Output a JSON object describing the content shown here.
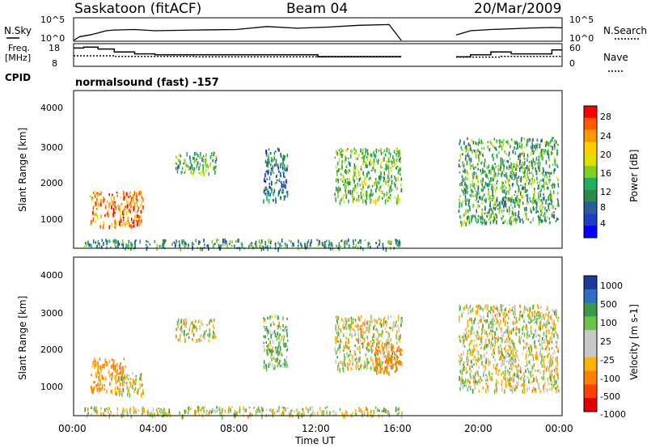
{
  "header": {
    "station": "Saskatoon (fitACF)",
    "beam": "Beam 04",
    "date": "20/Mar/2009"
  },
  "panels": {
    "nsky_label": "N.Sky",
    "nsky_tick_top": "10^5",
    "nsky_tick_bottom": "10^0",
    "nsearch_label": "N.Search",
    "freq_label_1": "Freq.",
    "freq_label_2": "[MHz]",
    "freq_ticks": [
      "18",
      "8"
    ],
    "nave_ticks": [
      "60",
      "0"
    ],
    "nave_label": "Nave",
    "cpid_label": "CPID",
    "cpid_text": "normalsound (fast) -157"
  },
  "axes": {
    "slant_range_label": "Slant Range [km]",
    "slant_range_ticks": [
      "4000",
      "3000",
      "2000",
      "1000"
    ],
    "time_ticks": [
      "00:00",
      "04:00",
      "08:00",
      "12:00",
      "16:00",
      "20:00",
      "00:00"
    ],
    "time_label": "Time UT"
  },
  "colorbars": {
    "power_label": "Power [dB]",
    "power_ticks": [
      "28",
      "24",
      "20",
      "16",
      "12",
      "8",
      "4"
    ],
    "power_colors": [
      "#ff0000",
      "#ff5a00",
      "#ff9a00",
      "#ffce00",
      "#e0e000",
      "#7fd020",
      "#20b060",
      "#2a8a4a",
      "#2c5a9a",
      "#1e3cc8",
      "#0000ff"
    ],
    "velocity_label": "Velocity [m s-1]",
    "velocity_ticks": [
      "1000",
      "500",
      "100",
      "25",
      "-25",
      "-100",
      "-500",
      "-1000"
    ],
    "velocity_colors": [
      "#1a3a9a",
      "#2d6fc0",
      "#3a9a4a",
      "#6cc34a",
      "#c8c8c8",
      "#c8c8c8",
      "#ffb000",
      "#ff8000",
      "#ff4000",
      "#e00000"
    ]
  },
  "chart_data": [
    {
      "type": "line",
      "title": "N.Sky / N.Search",
      "xlabel": "Time UT",
      "xlim": [
        0,
        24
      ],
      "yscale": "log",
      "ylim": [
        1,
        100000
      ],
      "series": [
        {
          "name": "N.Sky",
          "x": [
            0.0,
            0.3,
            0.8,
            1.2,
            1.6,
            2.0,
            3.0,
            4.0,
            6.0,
            8.0,
            9.5,
            11.0,
            12.5,
            14.0,
            15.5,
            16.1,
            18.8,
            19.5,
            20.5,
            21.5,
            22.5,
            23.5,
            24.0
          ],
          "y": [
            1,
            8,
            20,
            60,
            200,
            300,
            400,
            200,
            300,
            400,
            2000,
            800,
            1500,
            4000,
            6000,
            1,
            20,
            200,
            400,
            600,
            900,
            1200,
            1000
          ]
        }
      ]
    },
    {
      "type": "line",
      "title": "Freq. / Nave",
      "xlabel": "Time UT",
      "xlim": [
        0,
        24
      ],
      "series": [
        {
          "name": "Freq.",
          "x": [
            0.0,
            0.5,
            1.2,
            2.0,
            3.0,
            4.0,
            6.0,
            8.0,
            12.0,
            16.1,
            18.8,
            19.5,
            20.5,
            21.5,
            22.5,
            23.5,
            24.0
          ],
          "y": [
            17,
            17.5,
            16.5,
            15,
            14,
            13.5,
            13.5,
            13.5,
            12.5,
            12.5,
            12.5,
            13.5,
            15,
            14,
            14,
            16,
            16
          ]
        },
        {
          "name": "Nave",
          "x": [
            0.0,
            0.5,
            2.0,
            6.0,
            12.0,
            16.1,
            18.8,
            21.0,
            24.0
          ],
          "y": [
            30,
            30,
            28,
            27,
            28,
            28,
            26,
            28,
            30
          ]
        }
      ]
    },
    {
      "type": "heatmap",
      "title": "Power",
      "xlabel": "Time UT",
      "ylabel": "Slant Range [km]",
      "xlim": [
        0,
        24
      ],
      "ylim": [
        180,
        4600
      ],
      "zlabel": "Power [dB]",
      "zlim": [
        0,
        30
      ],
      "gaps": [
        [
          16.1,
          18.8
        ]
      ],
      "echo_regions": [
        {
          "t": [
            0.8,
            3.4
          ],
          "r": [
            800,
            1800
          ],
          "z": 24
        },
        {
          "t": [
            5.0,
            7.0
          ],
          "r": [
            2300,
            2900
          ],
          "z": 12
        },
        {
          "t": [
            9.3,
            10.5
          ],
          "r": [
            1500,
            3000
          ],
          "z": 8
        },
        {
          "t": [
            12.8,
            16.1
          ],
          "r": [
            1500,
            3000
          ],
          "z": 14
        },
        {
          "t": [
            18.9,
            23.8
          ],
          "r": [
            900,
            3300
          ],
          "z": 12
        },
        {
          "t": [
            0.5,
            16.1
          ],
          "r": [
            200,
            450
          ],
          "z": 10
        }
      ]
    },
    {
      "type": "heatmap",
      "title": "Velocity",
      "xlabel": "Time UT",
      "ylabel": "Slant Range [km]",
      "xlim": [
        0,
        24
      ],
      "ylim": [
        180,
        4600
      ],
      "zlabel": "Velocity [m s-1]",
      "zlim": [
        -1000,
        1000
      ],
      "gaps": [
        [
          16.1,
          18.8
        ]
      ],
      "echo_regions": [
        {
          "t": [
            0.8,
            2.5
          ],
          "r": [
            900,
            1800
          ],
          "v": -150
        },
        {
          "t": [
            2.0,
            3.4
          ],
          "r": [
            800,
            1400
          ],
          "v": 0
        },
        {
          "t": [
            5.0,
            7.0
          ],
          "r": [
            2300,
            2900
          ],
          "v": 0
        },
        {
          "t": [
            9.3,
            10.5
          ],
          "r": [
            1500,
            3000
          ],
          "v": 80
        },
        {
          "t": [
            12.8,
            16.1
          ],
          "r": [
            1500,
            3000
          ],
          "v": 0
        },
        {
          "t": [
            14.8,
            16.1
          ],
          "r": [
            1400,
            2200
          ],
          "v": -300
        },
        {
          "t": [
            18.9,
            23.8
          ],
          "r": [
            900,
            3300
          ],
          "v": 0
        },
        {
          "t": [
            0.5,
            16.1
          ],
          "r": [
            200,
            450
          ],
          "v": 0
        }
      ]
    }
  ]
}
